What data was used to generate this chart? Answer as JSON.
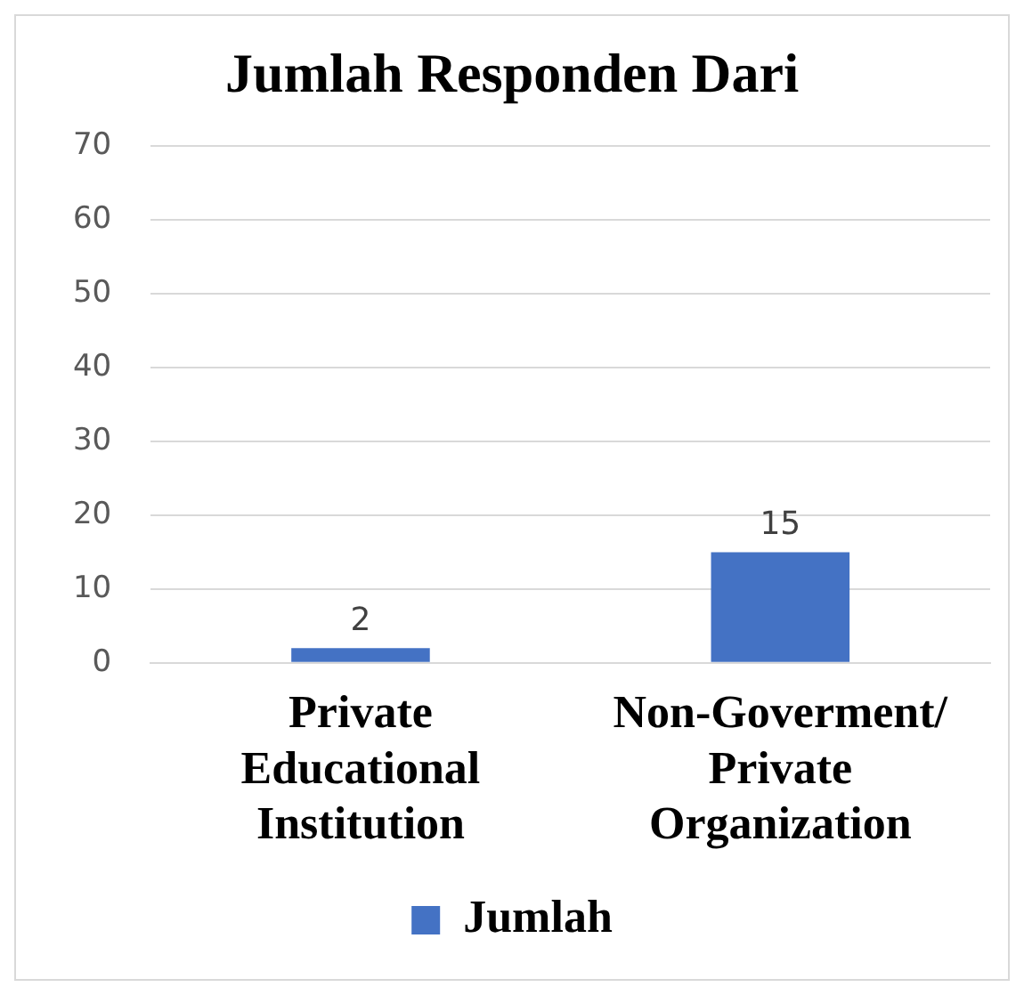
{
  "chart_data": {
    "type": "bar",
    "title": "Jumlah Responden Dari",
    "categories": [
      "Private Educational Institution",
      "Non-Goverment/ Private Organization"
    ],
    "series": [
      {
        "name": "Jumlah",
        "color": "#4472c4",
        "values": [
          2,
          15
        ]
      }
    ],
    "ylim": [
      0,
      70
    ],
    "yticks": [
      0,
      10,
      20,
      30,
      40,
      50,
      60,
      70
    ],
    "grid": "y",
    "legend": "bottom",
    "data_labels": true
  }
}
